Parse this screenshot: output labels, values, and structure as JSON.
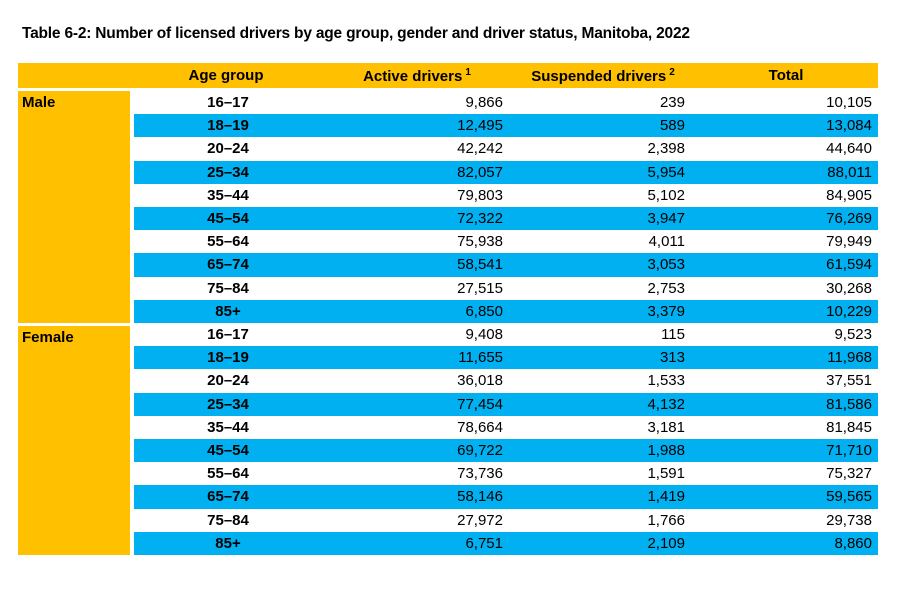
{
  "title": "Table 6-2: Number of licensed drivers by age group, gender and driver status, Manitoba, 2022",
  "colors": {
    "header_bg": "#FFC000",
    "stripe_bg": "#00B0F0",
    "row_bg": "#FFFFFF",
    "text": "#000000"
  },
  "table": {
    "columns": [
      {
        "label": "Age group",
        "superscript": ""
      },
      {
        "label": "Active drivers",
        "superscript": "1"
      },
      {
        "label": "Suspended drivers",
        "superscript": "2"
      },
      {
        "label": "Total",
        "superscript": ""
      }
    ],
    "sections": [
      {
        "label": "Male",
        "rows": [
          {
            "age_group": "16–17",
            "active": "9,866",
            "suspended": "239",
            "total": "10,105"
          },
          {
            "age_group": "18–19",
            "active": "12,495",
            "suspended": "589",
            "total": "13,084"
          },
          {
            "age_group": "20–24",
            "active": "42,242",
            "suspended": "2,398",
            "total": "44,640"
          },
          {
            "age_group": "25–34",
            "active": "82,057",
            "suspended": "5,954",
            "total": "88,011"
          },
          {
            "age_group": "35–44",
            "active": "79,803",
            "suspended": "5,102",
            "total": "84,905"
          },
          {
            "age_group": "45–54",
            "active": "72,322",
            "suspended": "3,947",
            "total": "76,269"
          },
          {
            "age_group": "55–64",
            "active": "75,938",
            "suspended": "4,011",
            "total": "79,949"
          },
          {
            "age_group": "65–74",
            "active": "58,541",
            "suspended": "3,053",
            "total": "61,594"
          },
          {
            "age_group": "75–84",
            "active": "27,515",
            "suspended": "2,753",
            "total": "30,268"
          },
          {
            "age_group": "85+",
            "active": "6,850",
            "suspended": "3,379",
            "total": "10,229"
          }
        ]
      },
      {
        "label": "Female",
        "rows": [
          {
            "age_group": "16–17",
            "active": "9,408",
            "suspended": "115",
            "total": "9,523"
          },
          {
            "age_group": "18–19",
            "active": "11,655",
            "suspended": "313",
            "total": "11,968"
          },
          {
            "age_group": "20–24",
            "active": "36,018",
            "suspended": "1,533",
            "total": "37,551"
          },
          {
            "age_group": "25–34",
            "active": "77,454",
            "suspended": "4,132",
            "total": "81,586"
          },
          {
            "age_group": "35–44",
            "active": "78,664",
            "suspended": "3,181",
            "total": "81,845"
          },
          {
            "age_group": "45–54",
            "active": "69,722",
            "suspended": "1,988",
            "total": "71,710"
          },
          {
            "age_group": "55–64",
            "active": "73,736",
            "suspended": "1,591",
            "total": "75,327"
          },
          {
            "age_group": "65–74",
            "active": "58,146",
            "suspended": "1,419",
            "total": "59,565"
          },
          {
            "age_group": "75–84",
            "active": "27,972",
            "suspended": "1,766",
            "total": "29,738"
          },
          {
            "age_group": "85+",
            "active": "6,751",
            "suspended": "2,109",
            "total": "8,860"
          }
        ]
      }
    ]
  }
}
